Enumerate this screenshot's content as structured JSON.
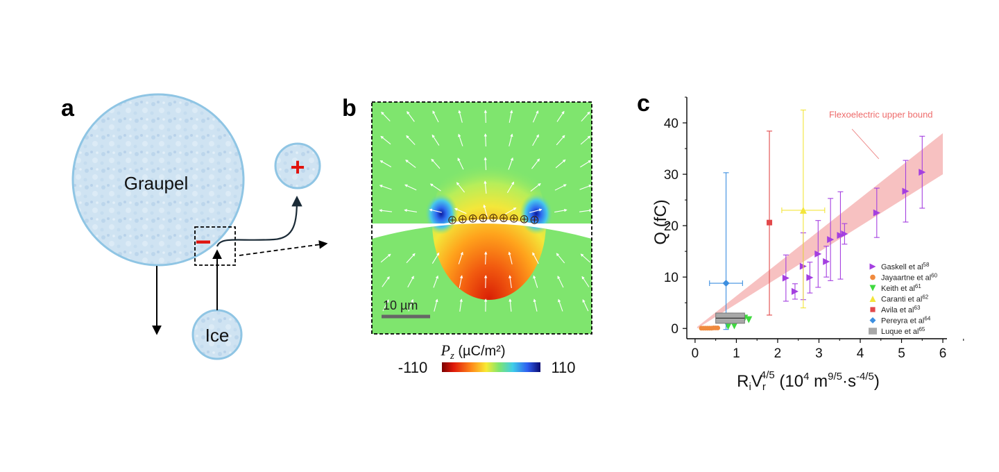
{
  "panel_a": {
    "letter": "a",
    "large_particle_label": "Graupel",
    "small_particle_label": "Ice",
    "negative_charge": "−",
    "positive_charge": "+"
  },
  "panel_b": {
    "letter": "b",
    "scale_bar_label": "10 µm",
    "colorbar_label_symbol": "P",
    "colorbar_label_sub": "z",
    "colorbar_label_unit": " (µC/m²)",
    "colorbar_min": "-110",
    "colorbar_max": "110"
  },
  "panel_c": {
    "letter": "c",
    "annotation": "Flexoelectric upper bound",
    "ylabel": "Q (fC)",
    "xlabel_main": "R",
    "xlabel_sub_i": "i",
    "xlabel_v": "V",
    "xlabel_sub_r": "r",
    "xlabel_sup": "4/5",
    "xlabel_units_a": " (10",
    "xlabel_units_sup1": "4",
    "xlabel_units_b": " m",
    "xlabel_units_sup2": "9/5",
    "xlabel_units_c": "·s",
    "xlabel_units_sup3": "-4/5",
    "xlabel_units_d": ")"
  },
  "chart_data": {
    "type": "scatter",
    "title": "",
    "xlabel": "RiVr^(4/5) (10^4 m^(9/5)·s^(-4/5))",
    "ylabel": "Q (fC)",
    "xlim": [
      -0.2,
      6.1
    ],
    "ylim": [
      -2,
      45
    ],
    "x_ticks": [
      0,
      1,
      2,
      3,
      4,
      5,
      6
    ],
    "y_ticks": [
      0,
      10,
      20,
      30,
      40
    ],
    "grid": false,
    "legend_position": "bottom-right",
    "bound_band": {
      "label": "Flexoelectric upper bound",
      "color": "#f4a6a6",
      "upper": [
        [
          0.05,
          0.3
        ],
        [
          6.0,
          38.0
        ]
      ],
      "lower": [
        [
          0.05,
          0.0
        ],
        [
          6.0,
          30.0
        ]
      ]
    },
    "series": [
      {
        "name": "Gaskell et al",
        "ref": "58",
        "marker": "triangle-right",
        "color": "#a43fe0",
        "points": [
          {
            "x": 2.2,
            "y": 9.8,
            "err_lo": 4.5,
            "err_hi": 4.5
          },
          {
            "x": 2.42,
            "y": 7.2,
            "err_lo": 1.5,
            "err_hi": 1.5
          },
          {
            "x": 2.62,
            "y": 12.1,
            "err_lo": 6.5,
            "err_hi": 6.5
          },
          {
            "x": 2.78,
            "y": 9.9,
            "err_lo": 3.0,
            "err_hi": 3.0
          },
          {
            "x": 2.98,
            "y": 14.5,
            "err_lo": 6.5,
            "err_hi": 6.5
          },
          {
            "x": 3.18,
            "y": 13.0,
            "err_lo": 3.0,
            "err_hi": 3.0
          },
          {
            "x": 3.28,
            "y": 17.3,
            "err_lo": 8.0,
            "err_hi": 8.0
          },
          {
            "x": 3.52,
            "y": 18.1,
            "err_lo": 8.5,
            "err_hi": 8.5
          },
          {
            "x": 3.62,
            "y": 18.4,
            "err_lo": 2.0,
            "err_hi": 2.0
          },
          {
            "x": 4.4,
            "y": 22.5,
            "err_lo": 4.8,
            "err_hi": 4.8
          },
          {
            "x": 5.1,
            "y": 26.7,
            "err_lo": 6.0,
            "err_hi": 6.0
          },
          {
            "x": 5.5,
            "y": 30.4,
            "err_lo": 7.0,
            "err_hi": 7.0
          }
        ]
      },
      {
        "name": "Jayaartne et al",
        "ref": "60",
        "marker": "circle",
        "color": "#f08a3e",
        "points": [
          {
            "x": 0.15,
            "y": 0.05
          },
          {
            "x": 0.2,
            "y": 0.05
          },
          {
            "x": 0.25,
            "y": 0.05
          },
          {
            "x": 0.3,
            "y": 0.05
          },
          {
            "x": 0.35,
            "y": 0.05
          },
          {
            "x": 0.4,
            "y": 0.05
          },
          {
            "x": 0.45,
            "y": 0.1
          },
          {
            "x": 0.5,
            "y": 0.1
          },
          {
            "x": 0.55,
            "y": 0.1
          }
        ]
      },
      {
        "name": "Keith et al",
        "ref": "61",
        "marker": "triangle-down",
        "color": "#3fd93f",
        "points": [
          {
            "x": 0.8,
            "y": 0.4
          },
          {
            "x": 0.95,
            "y": 0.5
          },
          {
            "x": 1.0,
            "y": 1.6
          },
          {
            "x": 1.1,
            "y": 1.8
          },
          {
            "x": 1.2,
            "y": 2.0
          },
          {
            "x": 1.3,
            "y": 1.7
          }
        ]
      },
      {
        "name": "Caranti et al",
        "ref": "62",
        "marker": "triangle-up",
        "color": "#f3e53a",
        "points": [
          {
            "x": 2.62,
            "y": 23.0,
            "err_lo": 19.0,
            "err_hi": 19.5,
            "xerr": 0.52
          }
        ]
      },
      {
        "name": "Avila et al",
        "ref": "63",
        "marker": "square",
        "color": "#e2484a",
        "points": [
          {
            "x": 1.8,
            "y": 20.6,
            "err_lo": 18.0,
            "err_hi": 17.8
          }
        ]
      },
      {
        "name": "Pereyra et al",
        "ref": "64",
        "marker": "diamond",
        "color": "#3d8fe0",
        "points": [
          {
            "x": 0.75,
            "y": 8.8,
            "err_lo": 9.0,
            "err_hi": 21.5,
            "xerr": 0.4
          }
        ]
      },
      {
        "name": "Luque et al",
        "ref": "65",
        "marker": "box",
        "color": "#a8a8a8",
        "points": [
          {
            "x": 0.85,
            "y": 2.0,
            "err_lo": 1.0,
            "err_hi": 1.0,
            "xbox": [
              0.5,
              1.2
            ]
          }
        ]
      }
    ]
  }
}
